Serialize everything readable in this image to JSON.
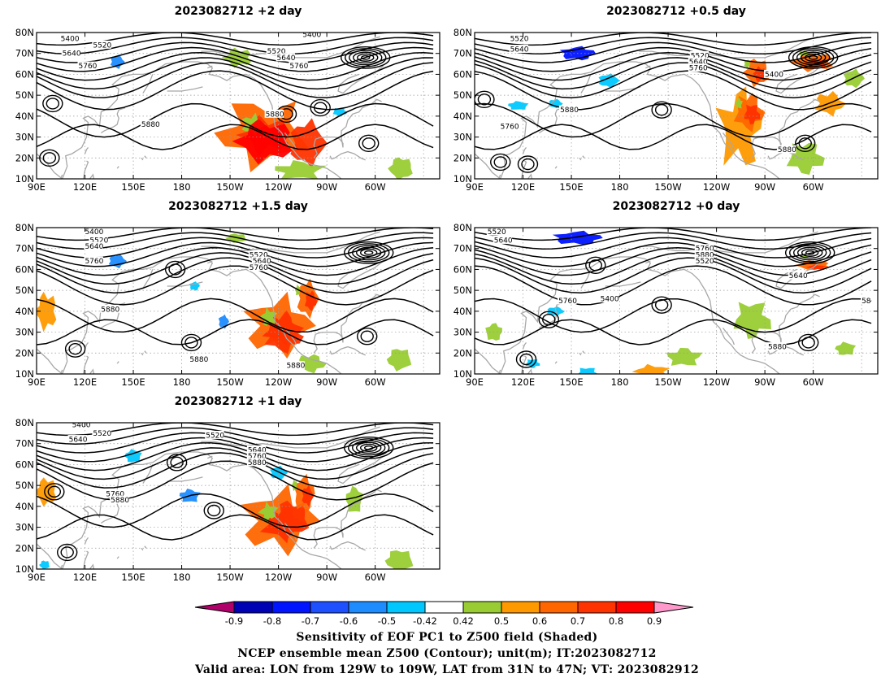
{
  "panels": [
    {
      "id": "p2",
      "title": "2023082712 +2 day",
      "contour_labels": [
        "5400",
        "5520",
        "5640",
        "5760",
        "5880",
        "5400",
        "5520",
        "5640",
        "5760",
        "5880"
      ]
    },
    {
      "id": "p05",
      "title": "2023082712 +0.5 day",
      "contour_labels": [
        "5520",
        "5640",
        "5880",
        "5760",
        "5520",
        "5640",
        "5760",
        "5400",
        "5880"
      ]
    },
    {
      "id": "p15",
      "title": "2023082712 +1.5 day",
      "contour_labels": [
        "5400",
        "5520",
        "5640",
        "5760",
        "5880",
        "5880",
        "5520",
        "5640",
        "5760",
        "5880"
      ]
    },
    {
      "id": "p0",
      "title": "2023082712 +0 day",
      "contour_labels": [
        "5520",
        "5640",
        "5760",
        "5880",
        "5520",
        "5640",
        "5760",
        "5400",
        "5880",
        "58"
      ]
    },
    {
      "id": "p1",
      "title": "2023082712 +1 day",
      "contour_labels": [
        "5400",
        "5520",
        "5640",
        "5760",
        "5880",
        "5520",
        "5640",
        "5760",
        "5880"
      ]
    }
  ],
  "map": {
    "x_ticks": [
      "90E",
      "120E",
      "150E",
      "180",
      "150W",
      "120W",
      "90W",
      "60W"
    ],
    "y_ticks": [
      "10N",
      "20N",
      "30N",
      "40N",
      "50N",
      "60N",
      "70N",
      "80N"
    ],
    "lon_range": [
      90,
      340
    ],
    "lat_range": [
      10,
      80
    ]
  },
  "colorbar": {
    "levels": [
      "-0.9",
      "-0.8",
      "-0.7",
      "-0.6",
      "-0.5",
      "-0.42",
      "0.42",
      "0.5",
      "0.6",
      "0.7",
      "0.8",
      "0.9"
    ],
    "colors": [
      "#b0006a",
      "#0000b4",
      "#0014ff",
      "#1e50ff",
      "#1e8cff",
      "#00c8ff",
      "#ffffff",
      "#99cc33",
      "#ff9900",
      "#ff6600",
      "#ff3300",
      "#ff0000",
      "#ff99cc"
    ]
  },
  "caption": {
    "line1": "Sensitivity of EOF PC1 to Z500 field (Shaded)",
    "line2": "NCEP ensemble mean Z500 (Contour); unit(m); IT:2023082712",
    "line3": "Valid area: LON from 129W to 109W, LAT from 31N to 47N; VT: 2023082912"
  }
}
